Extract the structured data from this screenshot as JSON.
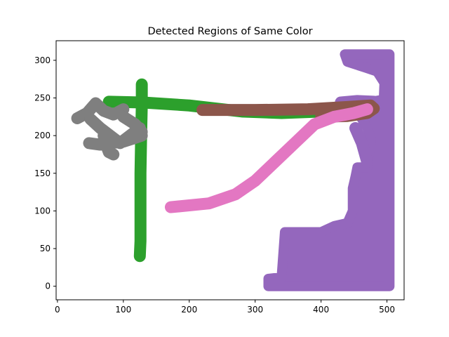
{
  "chart_data": {
    "type": "scatter",
    "title": "Detected Regions of Same Color",
    "xlabel": "",
    "ylabel": "",
    "xlim": [
      -2,
      526
    ],
    "ylim": [
      -18,
      326
    ],
    "xticks": [
      0,
      100,
      200,
      300,
      400,
      500
    ],
    "yticks": [
      0,
      50,
      100,
      150,
      200,
      250,
      300
    ],
    "xtick_labels": [
      "0",
      "100",
      "200",
      "300",
      "400",
      "500"
    ],
    "ytick_labels": [
      "0",
      "50",
      "100",
      "150",
      "200",
      "250",
      "300"
    ],
    "grid": false,
    "legend": "none",
    "series": [
      {
        "color": "#2ca02c",
        "strokes": [
          [
            [
              78,
              245
            ],
            [
              130,
              244
            ],
            [
              200,
              240
            ],
            [
              280,
              232
            ],
            [
              340,
              230
            ],
            [
              400,
              232
            ],
            [
              455,
              236
            ],
            [
              480,
              236
            ]
          ],
          [
            [
              128,
              268
            ],
            [
              128,
              240
            ],
            [
              127,
              200
            ],
            [
              126,
              150
            ],
            [
              126,
              100
            ],
            [
              126,
              60
            ],
            [
              125,
              40
            ]
          ]
        ]
      },
      {
        "color": "#9467bd",
        "regions": [
          [
            [
              436,
              308
            ],
            [
              504,
              308
            ],
            [
              504,
              0
            ],
            [
              320,
              0
            ],
            [
              320,
              10
            ],
            [
              340,
              12
            ],
            [
              345,
              72
            ],
            [
              400,
              72
            ],
            [
              420,
              80
            ],
            [
              440,
              84
            ],
            [
              448,
              100
            ],
            [
              448,
              130
            ],
            [
              452,
              145
            ],
            [
              455,
              158
            ],
            [
              470,
              158
            ],
            [
              476,
              195
            ],
            [
              470,
              210
            ],
            [
              460,
              225
            ],
            [
              445,
              240
            ],
            [
              495,
              248
            ],
            [
              496,
              270
            ],
            [
              485,
              285
            ],
            [
              468,
              290
            ],
            [
              440,
              298
            ]
          ]
        ],
        "strokes": [
          [
            [
              452,
              210
            ],
            [
              462,
              190
            ],
            [
              470,
              165
            ]
          ],
          [
            [
              480,
              245
            ],
            [
              455,
              246
            ],
            [
              430,
              244
            ]
          ]
        ]
      },
      {
        "color": "#8c564b",
        "strokes": [
          [
            [
              220,
              234
            ],
            [
              300,
              234
            ],
            [
              380,
              235
            ],
            [
              440,
              238
            ],
            [
              475,
              240
            ],
            [
              480,
              236
            ],
            [
              470,
              230
            ],
            [
              440,
              226
            ],
            [
              400,
              225
            ]
          ]
        ]
      },
      {
        "color": "#e377c2",
        "strokes": [
          [
            [
              172,
              105
            ],
            [
              230,
              110
            ],
            [
              270,
              122
            ],
            [
              300,
              140
            ],
            [
              330,
              165
            ],
            [
              360,
              190
            ],
            [
              390,
              215
            ],
            [
              420,
              225
            ],
            [
              450,
              230
            ],
            [
              470,
              235
            ]
          ]
        ]
      },
      {
        "color": "#7f7f7f",
        "strokes": [
          [
            [
              30,
              223
            ],
            [
              45,
              230
            ],
            [
              58,
              243
            ],
            [
              70,
              233
            ],
            [
              85,
              228
            ],
            [
              100,
              235
            ]
          ],
          [
            [
              50,
              222
            ],
            [
              65,
              210
            ],
            [
              80,
              200
            ],
            [
              95,
              190
            ],
            [
              110,
              200
            ],
            [
              125,
              210
            ]
          ],
          [
            [
              48,
              190
            ],
            [
              65,
              188
            ],
            [
              82,
              190
            ],
            [
              100,
              192
            ],
            [
              118,
              197
            ],
            [
              128,
              200
            ]
          ],
          [
            [
              70,
              200
            ],
            [
              75,
              185
            ],
            [
              78,
              178
            ],
            [
              85,
              175
            ]
          ],
          [
            [
              100,
              225
            ],
            [
              118,
              215
            ],
            [
              128,
              205
            ]
          ]
        ]
      }
    ]
  }
}
